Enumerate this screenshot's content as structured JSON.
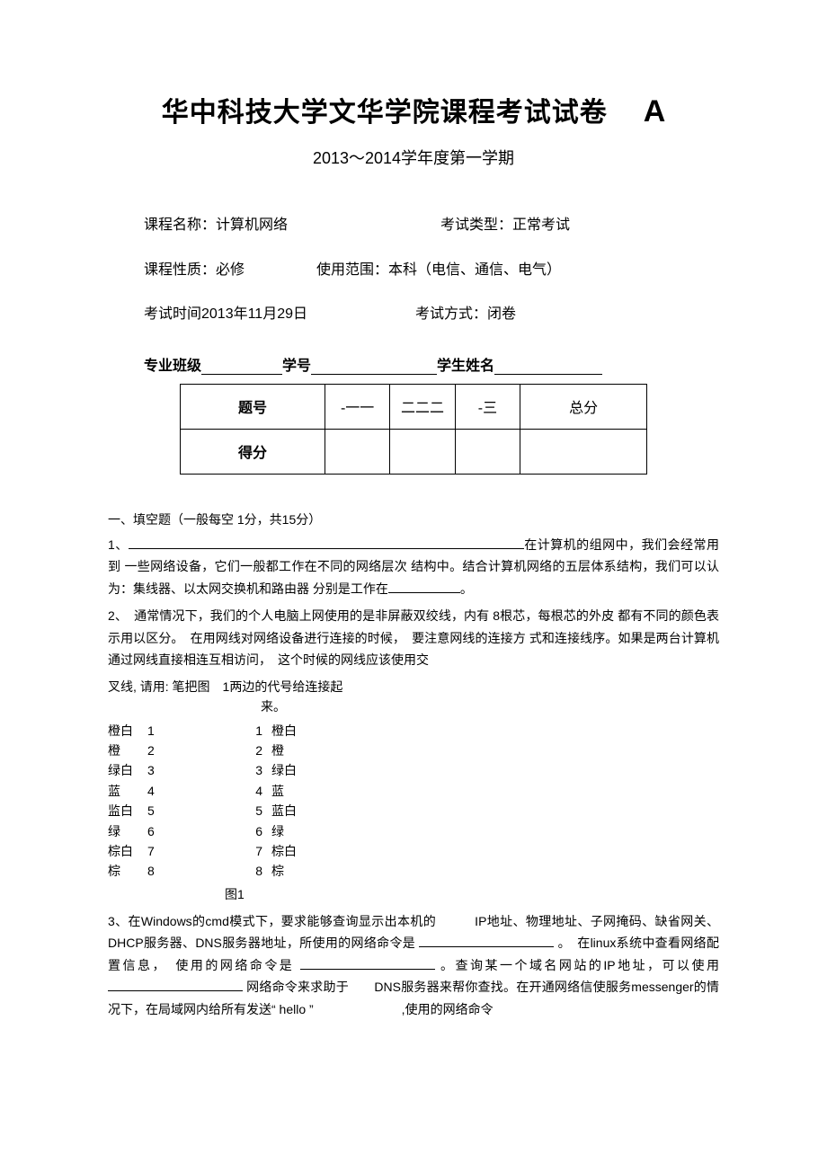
{
  "header": {
    "main_title": "华中科技大学文华学院课程考试试卷",
    "letter": "A",
    "subtitle": "2013～2014学年度第一学期"
  },
  "info": {
    "course_name_label": "课程名称：计算机网络",
    "exam_type_label": "考试类型：正常考试",
    "course_nature_label": "课程性质：必修",
    "scope_label": "使用范围：本科（电信、通信、电气）",
    "exam_time_label": "考试时间2013年11月29日",
    "exam_mode_label": "考试方式：闭卷"
  },
  "signature": {
    "class_label": "专业班级",
    "id_label": "学号",
    "name_label": "学生姓名"
  },
  "score_table": {
    "row1_label": "题号",
    "cols": [
      "-一一",
      "二二二",
      "-三"
    ],
    "total_label": "总分",
    "row2_label": "得分"
  },
  "section1": {
    "heading": "一、填空题（一般每空 1分，共15分）",
    "q1_prefix": "1、",
    "q1_tail": "在计算机的组网中，我们会经常用到 一些网络设备，它们一般都工作在不同的网络层次 结构中。结合计算机网络的五层体系结构，我们可以认为：集线器、以太网交换机和路由器 分别是工作在",
    "q1_end": "。",
    "q2": "2、　通常情况下，我们的个人电脑上网使用的是非屏蔽双绞线，内有  8根芯，每根芯的外皮  都有不同的颜色表示用以区分。　在用网线对网络设备进行连接的时候，　要注意网线的连接方  式和连接线序。如果是两台计算机通过网线直接相连互相访问，　这个时候的网线应该使用交",
    "crossnote_a": "叉线, 请用: 笔把图　1两边的代号给连接起",
    "crossnote_b": "来。",
    "wires_left": [
      {
        "label": "橙白",
        "n": "1"
      },
      {
        "label": "橙",
        "n": "2"
      },
      {
        "label": "绿白",
        "n": "3"
      },
      {
        "label": "蓝",
        "n": "4"
      },
      {
        "label": "监白",
        "n": "5"
      },
      {
        "label": "绿",
        "n": "6"
      },
      {
        "label": "棕白",
        "n": "7"
      },
      {
        "label": "棕",
        "n": "8"
      }
    ],
    "wires_right": [
      {
        "n": "1",
        "label": "橙白"
      },
      {
        "n": "2",
        "label": "橙"
      },
      {
        "n": "3",
        "label": "绿白"
      },
      {
        "n": "4",
        "label": "蓝"
      },
      {
        "n": "5",
        "label": "蓝白"
      },
      {
        "n": "6",
        "label": "绿"
      },
      {
        "n": "7",
        "label": "棕白"
      },
      {
        "n": "8",
        "label": "棕"
      }
    ],
    "fig_caption": "图1",
    "q3_a": "3、在Windows的cmd模式下，要求能够查询显示出本机的　　　IP地址、物理地址、子网掩码、缺省网关、DHCP服务器、DNS服务器地址，所使用的网络命令是",
    "q3_b": "。　在linux系统中查看网络配置信息，　使用的网络命令是",
    "q3_c": "。查询某一个域名网站的IP地址，可以使用",
    "q3_d": "网络命令来求助于　　DNS服务器来帮你查找。在开通网络信使服务messenger的情况下，在局域网内给所有发送“    hello  ”　　　　　　　,使用的网络命令"
  }
}
